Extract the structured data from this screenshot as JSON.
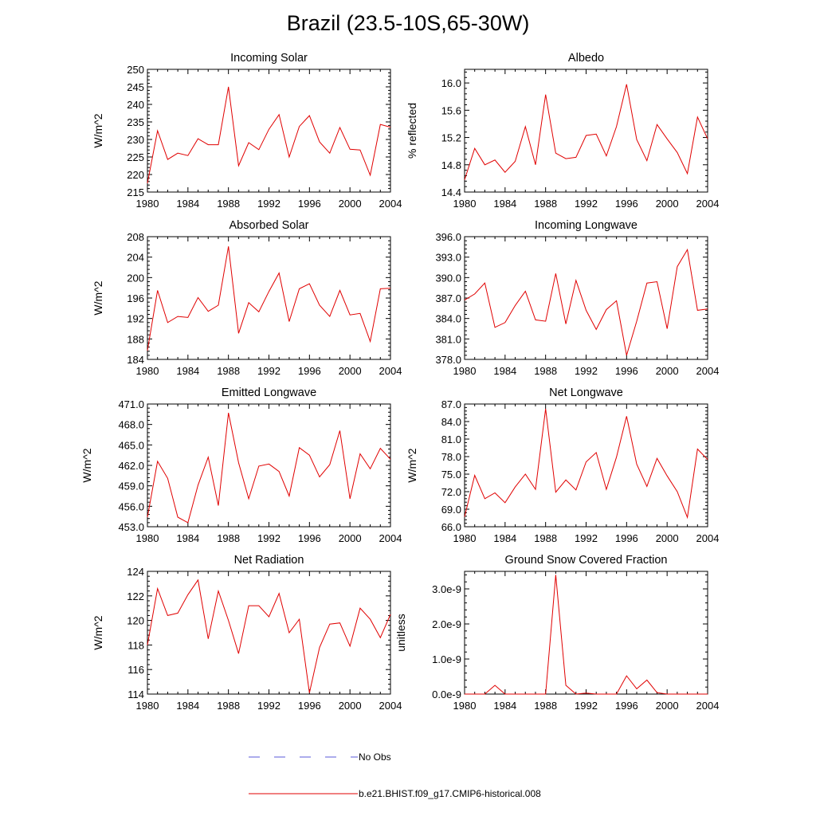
{
  "title": "Brazil (23.5-10S,65-30W)",
  "legend": {
    "obs_label": "No Obs",
    "model_label": "b.e21.BHIST.f09_g17.CMIP6-historical.008",
    "obs_color": "#5a5ad8",
    "model_color": "#e00000"
  },
  "chart_data": [
    {
      "type": "line",
      "title": "Incoming Solar",
      "ylabel": "W/m^2",
      "xlim": [
        1980,
        2004
      ],
      "ylim": [
        215,
        250
      ],
      "yticks": [
        215,
        220,
        225,
        230,
        235,
        240,
        245,
        250
      ],
      "ytick_labels": [
        "215",
        "220",
        "225",
        "230",
        "235",
        "240",
        "245",
        "250"
      ],
      "xticks": [
        "1980",
        "1984",
        "1988",
        "1992",
        "1996",
        "2000",
        "2004"
      ],
      "x": [
        1980,
        1981,
        1982,
        1983,
        1984,
        1985,
        1986,
        1987,
        1988,
        1989,
        1990,
        1991,
        1992,
        1993,
        1994,
        1995,
        1996,
        1997,
        1998,
        1999,
        2000,
        2001,
        2002,
        2003,
        2004
      ],
      "values": [
        217.5,
        232.5,
        224.3,
        226.1,
        225.4,
        230.2,
        228.5,
        228.5,
        245.0,
        222.5,
        229.1,
        227.1,
        232.9,
        237.1,
        225.0,
        233.7,
        236.8,
        229.3,
        226.1,
        233.4,
        227.2,
        227.0,
        219.8,
        234.3,
        233.5
      ]
    },
    {
      "type": "line",
      "title": "Albedo",
      "ylabel": "% reflected",
      "xlim": [
        1980,
        2004
      ],
      "ylim": [
        14.4,
        16.2
      ],
      "yticks": [
        14.4,
        14.8,
        15.2,
        15.6,
        16.0
      ],
      "ytick_labels": [
        "14.4",
        "14.8",
        "15.2",
        "15.6",
        "16.0"
      ],
      "xticks": [
        "1980",
        "1984",
        "1988",
        "1992",
        "1996",
        "2000",
        "2004"
      ],
      "x": [
        1980,
        1981,
        1982,
        1983,
        1984,
        1985,
        1986,
        1987,
        1988,
        1989,
        1990,
        1991,
        1992,
        1993,
        1994,
        1995,
        1996,
        1997,
        1998,
        1999,
        2000,
        2001,
        2002,
        2003,
        2004
      ],
      "values": [
        14.58,
        15.04,
        14.8,
        14.87,
        14.69,
        14.85,
        15.36,
        14.8,
        15.83,
        14.97,
        14.89,
        14.91,
        15.23,
        15.25,
        14.93,
        15.36,
        15.98,
        15.17,
        14.86,
        15.39,
        15.18,
        14.98,
        14.67,
        15.5,
        15.18
      ]
    },
    {
      "type": "line",
      "title": "Absorbed Solar",
      "ylabel": "W/m^2",
      "xlim": [
        1980,
        2004
      ],
      "ylim": [
        184,
        208
      ],
      "yticks": [
        184,
        188,
        192,
        196,
        200,
        204,
        208
      ],
      "ytick_labels": [
        "184",
        "188",
        "192",
        "196",
        "200",
        "204",
        "208"
      ],
      "xticks": [
        "1980",
        "1984",
        "1988",
        "1992",
        "1996",
        "2000",
        "2004"
      ],
      "x": [
        1980,
        1981,
        1982,
        1983,
        1984,
        1985,
        1986,
        1987,
        1988,
        1989,
        1990,
        1991,
        1992,
        1993,
        1994,
        1995,
        1996,
        1997,
        1998,
        1999,
        2000,
        2001,
        2002,
        2003,
        2004
      ],
      "values": [
        185.7,
        197.5,
        191.2,
        192.4,
        192.2,
        196.1,
        193.4,
        194.6,
        206.1,
        189.1,
        195.1,
        193.3,
        197.3,
        200.9,
        191.4,
        197.8,
        198.8,
        194.6,
        192.4,
        197.5,
        192.7,
        193.0,
        187.5,
        197.8,
        197.9
      ]
    },
    {
      "type": "line",
      "title": "Incoming Longwave",
      "ylabel": "",
      "xlim": [
        1980,
        2004
      ],
      "ylim": [
        378,
        396
      ],
      "yticks": [
        378,
        381,
        384,
        387,
        390,
        393,
        396
      ],
      "ytick_labels": [
        "378.0",
        "381.0",
        "384.0",
        "387.0",
        "390.0",
        "393.0",
        "396.0"
      ],
      "xticks": [
        "1980",
        "1984",
        "1988",
        "1992",
        "1996",
        "2000",
        "2004"
      ],
      "x": [
        1980,
        1981,
        1982,
        1983,
        1984,
        1985,
        1986,
        1987,
        1988,
        1989,
        1990,
        1991,
        1992,
        1993,
        1994,
        1995,
        1996,
        1997,
        1998,
        1999,
        2000,
        2001,
        2002,
        2003,
        2004
      ],
      "values": [
        386.7,
        387.6,
        389.2,
        382.7,
        383.4,
        385.9,
        388.0,
        383.8,
        383.6,
        390.6,
        383.2,
        389.6,
        385.2,
        382.4,
        385.3,
        386.6,
        378.6,
        383.6,
        389.2,
        389.4,
        382.5,
        391.6,
        394.1,
        385.2,
        385.4
      ]
    },
    {
      "type": "line",
      "title": "Emitted Longwave",
      "ylabel": "W/m^2",
      "xlim": [
        1980,
        2004
      ],
      "ylim": [
        453,
        471
      ],
      "yticks": [
        453,
        456,
        459,
        462,
        465,
        468,
        471
      ],
      "ytick_labels": [
        "453.0",
        "456.0",
        "459.0",
        "462.0",
        "465.0",
        "468.0",
        "471.0"
      ],
      "xticks": [
        "1980",
        "1984",
        "1988",
        "1992",
        "1996",
        "2000",
        "2004"
      ],
      "x": [
        1980,
        1981,
        1982,
        1983,
        1984,
        1985,
        1986,
        1987,
        1988,
        1989,
        1990,
        1991,
        1992,
        1993,
        1994,
        1995,
        1996,
        1997,
        1998,
        1999,
        2000,
        2001,
        2002,
        2003,
        2004
      ],
      "values": [
        454.4,
        462.6,
        460.1,
        454.4,
        453.6,
        459.1,
        463.2,
        456.1,
        469.7,
        462.4,
        457.1,
        461.9,
        462.2,
        461.1,
        457.5,
        464.6,
        463.5,
        460.3,
        462.1,
        467.1,
        457.1,
        463.7,
        461.5,
        464.5,
        462.9
      ]
    },
    {
      "type": "line",
      "title": "Net Longwave",
      "ylabel": "W/m^2",
      "xlim": [
        1980,
        2004
      ],
      "ylim": [
        66,
        87
      ],
      "yticks": [
        66,
        69,
        72,
        75,
        78,
        81,
        84,
        87
      ],
      "ytick_labels": [
        "66.0",
        "69.0",
        "72.0",
        "75.0",
        "78.0",
        "81.0",
        "84.0",
        "87.0"
      ],
      "xticks": [
        "1980",
        "1984",
        "1988",
        "1992",
        "1996",
        "2000",
        "2004"
      ],
      "x": [
        1980,
        1981,
        1982,
        1983,
        1984,
        1985,
        1986,
        1987,
        1988,
        1989,
        1990,
        1991,
        1992,
        1993,
        1994,
        1995,
        1996,
        1997,
        1998,
        1999,
        2000,
        2001,
        2002,
        2003,
        2004
      ],
      "values": [
        67.7,
        74.8,
        70.8,
        71.8,
        70.1,
        72.8,
        75.0,
        72.4,
        86.2,
        71.9,
        74.0,
        72.3,
        77.1,
        78.7,
        72.4,
        77.9,
        84.9,
        76.7,
        72.9,
        77.7,
        74.7,
        72.0,
        67.6,
        79.3,
        77.5
      ]
    },
    {
      "type": "line",
      "title": "Net Radiation",
      "ylabel": "W/m^2",
      "xlim": [
        1980,
        2004
      ],
      "ylim": [
        114,
        124
      ],
      "yticks": [
        114,
        116,
        118,
        120,
        122,
        124
      ],
      "ytick_labels": [
        "114",
        "116",
        "118",
        "120",
        "122",
        "124"
      ],
      "xticks": [
        "1980",
        "1984",
        "1988",
        "1992",
        "1996",
        "2000",
        "2004"
      ],
      "x": [
        1980,
        1981,
        1982,
        1983,
        1984,
        1985,
        1986,
        1987,
        1988,
        1989,
        1990,
        1991,
        1992,
        1993,
        1994,
        1995,
        1996,
        1997,
        1998,
        1999,
        2000,
        2001,
        2002,
        2003,
        2004
      ],
      "values": [
        118.0,
        122.6,
        120.4,
        120.6,
        122.1,
        123.3,
        118.5,
        122.4,
        120.0,
        117.3,
        121.2,
        121.2,
        120.3,
        122.2,
        119.0,
        120.1,
        114.1,
        117.8,
        119.7,
        119.8,
        117.9,
        121.0,
        120.1,
        118.6,
        120.5
      ]
    },
    {
      "type": "line",
      "title": "Ground Snow Covered Fraction",
      "ylabel": "unitless",
      "xlim": [
        1980,
        2004
      ],
      "ylim": [
        0,
        3.5e-09
      ],
      "yticks": [
        0,
        1e-09,
        2e-09,
        3e-09
      ],
      "ytick_labels": [
        "0.0e-9",
        "1.0e-9",
        "2.0e-9",
        "3.0e-9"
      ],
      "xticks": [
        "1980",
        "1984",
        "1988",
        "1992",
        "1996",
        "2000",
        "2004"
      ],
      "x": [
        1980,
        1981,
        1982,
        1983,
        1984,
        1985,
        1986,
        1987,
        1988,
        1989,
        1990,
        1991,
        1992,
        1993,
        1994,
        1995,
        1996,
        1997,
        1998,
        1999,
        2000,
        2001,
        2002,
        2003,
        2004
      ],
      "values": [
        0,
        0,
        0,
        2.5e-10,
        0,
        0,
        0,
        0,
        0,
        3.4e-09,
        2.5e-10,
        0,
        3e-11,
        0,
        0,
        0,
        5.2e-10,
        1.5e-10,
        4e-10,
        4e-11,
        0,
        0,
        0,
        0,
        0
      ]
    }
  ]
}
